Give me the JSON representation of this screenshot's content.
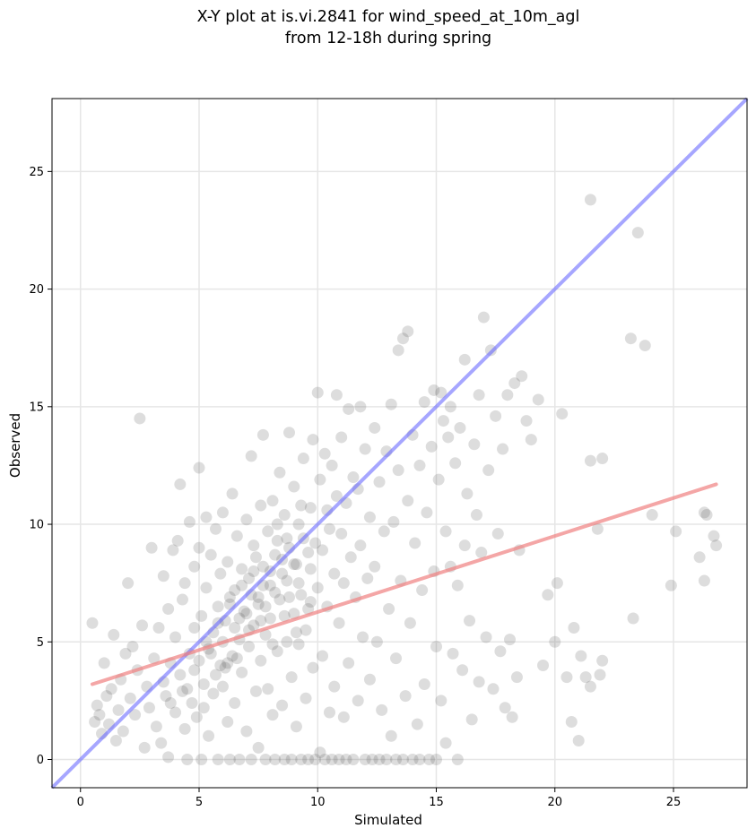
{
  "chart_data": {
    "type": "scatter",
    "title_line1": "X-Y plot at is.vi.2841 for wind_speed_at_10m_agl",
    "title_line2": "from 12-18h during spring",
    "xlabel": "Simulated",
    "ylabel": "Observed",
    "xlim": [
      -1.2,
      28.1
    ],
    "ylim": [
      -1.2,
      28.1
    ],
    "xticks": [
      0,
      5,
      10,
      15,
      20,
      25
    ],
    "yticks": [
      0,
      5,
      10,
      15,
      20,
      25
    ],
    "grid": true,
    "point_color": "#555555",
    "reference_line": {
      "color": "#6b6bff",
      "from": [
        -1.2,
        -1.2
      ],
      "to": [
        28.1,
        28.1
      ]
    },
    "fit_line": {
      "color": "#f08080",
      "from": [
        0.5,
        3.2
      ],
      "to": [
        26.8,
        11.7
      ]
    },
    "points": [
      [
        0.5,
        5.8
      ],
      [
        0.6,
        1.6
      ],
      [
        0.7,
        2.3
      ],
      [
        0.8,
        1.9
      ],
      [
        0.9,
        1.1
      ],
      [
        1.0,
        4.1
      ],
      [
        1.1,
        2.7
      ],
      [
        1.2,
        1.5
      ],
      [
        1.3,
        3.0
      ],
      [
        1.4,
        5.3
      ],
      [
        1.5,
        0.8
      ],
      [
        1.6,
        2.1
      ],
      [
        1.7,
        3.4
      ],
      [
        1.8,
        1.2
      ],
      [
        1.9,
        4.5
      ],
      [
        2.0,
        7.5
      ],
      [
        2.1,
        2.6
      ],
      [
        2.2,
        4.8
      ],
      [
        2.3,
        1.9
      ],
      [
        2.4,
        3.8
      ],
      [
        2.5,
        14.5
      ],
      [
        2.6,
        5.7
      ],
      [
        2.7,
        0.5
      ],
      [
        2.8,
        3.1
      ],
      [
        2.9,
        2.2
      ],
      [
        3.0,
        9.0
      ],
      [
        3.1,
        4.3
      ],
      [
        3.2,
        1.4
      ],
      [
        3.3,
        5.6
      ],
      [
        3.4,
        0.7
      ],
      [
        3.5,
        7.8
      ],
      [
        3.5,
        3.3
      ],
      [
        3.6,
        2.7
      ],
      [
        3.7,
        6.4
      ],
      [
        3.7,
        0.1
      ],
      [
        3.8,
        4.1
      ],
      [
        3.9,
        8.9
      ],
      [
        4.0,
        5.2
      ],
      [
        4.0,
        2.0
      ],
      [
        4.1,
        9.3
      ],
      [
        4.2,
        11.7
      ],
      [
        4.2,
        3.6
      ],
      [
        4.3,
        6.8
      ],
      [
        4.4,
        1.3
      ],
      [
        4.4,
        7.5
      ],
      [
        4.5,
        0.0
      ],
      [
        4.6,
        4.5
      ],
      [
        4.6,
        10.1
      ],
      [
        4.7,
        2.4
      ],
      [
        4.8,
        8.2
      ],
      [
        4.8,
        5.6
      ],
      [
        4.9,
        1.8
      ],
      [
        5.0,
        12.4
      ],
      [
        5.0,
        9.0
      ],
      [
        5.1,
        0.0
      ],
      [
        5.1,
        6.1
      ],
      [
        5.2,
        3.2
      ],
      [
        5.3,
        7.3
      ],
      [
        5.3,
        10.3
      ],
      [
        5.4,
        4.7
      ],
      [
        5.4,
        1.0
      ],
      [
        5.5,
        8.7
      ],
      [
        5.6,
        5.4
      ],
      [
        5.6,
        2.8
      ],
      [
        5.7,
        9.8
      ],
      [
        5.8,
        6.5
      ],
      [
        5.8,
        0.0
      ],
      [
        5.9,
        4.0
      ],
      [
        5.9,
        7.9
      ],
      [
        6.0,
        10.5
      ],
      [
        6.0,
        3.1
      ],
      [
        6.1,
        5.9
      ],
      [
        6.2,
        8.4
      ],
      [
        6.2,
        1.6
      ],
      [
        6.3,
        6.9
      ],
      [
        6.3,
        0.0
      ],
      [
        6.4,
        11.3
      ],
      [
        6.4,
        4.4
      ],
      [
        6.5,
        7.2
      ],
      [
        6.5,
        2.4
      ],
      [
        6.6,
        9.5
      ],
      [
        6.7,
        5.1
      ],
      [
        6.7,
        0.0
      ],
      [
        6.8,
        8.1
      ],
      [
        6.8,
        3.7
      ],
      [
        6.9,
        6.3
      ],
      [
        7.0,
        10.2
      ],
      [
        7.0,
        1.2
      ],
      [
        7.1,
        7.7
      ],
      [
        7.1,
        4.8
      ],
      [
        7.2,
        12.9
      ],
      [
        7.2,
        0.0
      ],
      [
        7.3,
        9.1
      ],
      [
        7.3,
        5.7
      ],
      [
        7.4,
        2.9
      ],
      [
        7.4,
        8.6
      ],
      [
        7.5,
        6.6
      ],
      [
        7.5,
        0.5
      ],
      [
        7.6,
        10.8
      ],
      [
        7.6,
        4.2
      ],
      [
        7.7,
        7.4
      ],
      [
        7.7,
        13.8
      ],
      [
        7.8,
        0.0
      ],
      [
        7.8,
        5.3
      ],
      [
        7.9,
        9.7
      ],
      [
        7.9,
        3.0
      ],
      [
        8.0,
        8.0
      ],
      [
        8.0,
        6.0
      ],
      [
        8.1,
        11.0
      ],
      [
        8.1,
        1.9
      ],
      [
        8.2,
        7.1
      ],
      [
        8.2,
        0.0
      ],
      [
        8.3,
        9.3
      ],
      [
        8.3,
        4.6
      ],
      [
        8.4,
        12.2
      ],
      [
        8.4,
        6.8
      ],
      [
        8.5,
        8.5
      ],
      [
        8.5,
        2.3
      ],
      [
        8.6,
        10.4
      ],
      [
        8.6,
        0.0
      ],
      [
        8.7,
        7.6
      ],
      [
        8.7,
        5.0
      ],
      [
        8.8,
        13.9
      ],
      [
        8.8,
        9.0
      ],
      [
        8.9,
        3.5
      ],
      [
        8.9,
        0.0
      ],
      [
        9.0,
        6.2
      ],
      [
        9.0,
        11.6
      ],
      [
        9.1,
        8.3
      ],
      [
        9.1,
        1.4
      ],
      [
        9.2,
        10.0
      ],
      [
        9.2,
        4.9
      ],
      [
        9.3,
        7.0
      ],
      [
        9.3,
        0.0
      ],
      [
        9.4,
        12.8
      ],
      [
        9.4,
        9.4
      ],
      [
        9.5,
        5.5
      ],
      [
        9.5,
        2.6
      ],
      [
        9.6,
        8.8
      ],
      [
        9.6,
        0.0
      ],
      [
        9.7,
        10.7
      ],
      [
        9.7,
        6.7
      ],
      [
        9.8,
        13.6
      ],
      [
        9.8,
        3.9
      ],
      [
        9.9,
        9.2
      ],
      [
        9.9,
        0.0
      ],
      [
        10.0,
        15.6
      ],
      [
        10.0,
        7.3
      ],
      [
        10.1,
        11.9
      ],
      [
        10.1,
        0.3
      ],
      [
        10.2,
        4.4
      ],
      [
        10.2,
        8.9
      ],
      [
        10.3,
        13.0
      ],
      [
        10.3,
        0.0
      ],
      [
        10.4,
        10.6
      ],
      [
        10.4,
        6.5
      ],
      [
        10.5,
        2.0
      ],
      [
        10.5,
        9.8
      ],
      [
        10.6,
        12.5
      ],
      [
        10.6,
        0.0
      ],
      [
        10.7,
        7.9
      ],
      [
        10.7,
        3.1
      ],
      [
        10.8,
        11.2
      ],
      [
        10.8,
        15.5
      ],
      [
        10.9,
        5.8
      ],
      [
        10.9,
        0.0
      ],
      [
        11.0,
        9.6
      ],
      [
        11.0,
        13.7
      ],
      [
        11.1,
        1.8
      ],
      [
        11.1,
        7.5
      ],
      [
        11.2,
        10.9
      ],
      [
        11.2,
        0.0
      ],
      [
        11.3,
        4.1
      ],
      [
        11.3,
        14.9
      ],
      [
        11.4,
        8.6
      ],
      [
        11.5,
        12.0
      ],
      [
        11.5,
        0.0
      ],
      [
        11.6,
        6.9
      ],
      [
        11.7,
        2.5
      ],
      [
        11.7,
        11.5
      ],
      [
        11.8,
        9.1
      ],
      [
        11.8,
        15.0
      ],
      [
        11.9,
        5.2
      ],
      [
        12.0,
        0.0
      ],
      [
        12.0,
        13.2
      ],
      [
        12.1,
        7.7
      ],
      [
        12.2,
        3.4
      ],
      [
        12.2,
        10.3
      ],
      [
        12.3,
        0.0
      ],
      [
        12.4,
        14.1
      ],
      [
        12.4,
        8.2
      ],
      [
        12.5,
        5.0
      ],
      [
        12.6,
        11.8
      ],
      [
        12.6,
        0.0
      ],
      [
        12.7,
        2.1
      ],
      [
        12.8,
        9.7
      ],
      [
        12.9,
        13.1
      ],
      [
        12.9,
        0.0
      ],
      [
        13.0,
        6.4
      ],
      [
        13.1,
        15.1
      ],
      [
        13.1,
        1.0
      ],
      [
        13.2,
        10.1
      ],
      [
        13.3,
        4.3
      ],
      [
        13.3,
        0.0
      ],
      [
        13.4,
        12.3
      ],
      [
        13.4,
        17.4
      ],
      [
        13.5,
        7.6
      ],
      [
        13.6,
        17.9
      ],
      [
        13.6,
        0.0
      ],
      [
        13.7,
        2.7
      ],
      [
        13.8,
        11.0
      ],
      [
        13.8,
        18.2
      ],
      [
        13.9,
        5.8
      ],
      [
        14.0,
        13.8
      ],
      [
        14.0,
        0.0
      ],
      [
        14.1,
        9.2
      ],
      [
        14.2,
        1.5
      ],
      [
        14.3,
        12.5
      ],
      [
        14.3,
        0.0
      ],
      [
        14.4,
        7.2
      ],
      [
        14.5,
        15.2
      ],
      [
        14.5,
        3.2
      ],
      [
        14.6,
        10.5
      ],
      [
        14.7,
        0.0
      ],
      [
        14.8,
        13.3
      ],
      [
        14.9,
        15.7
      ],
      [
        14.9,
        8.0
      ],
      [
        15.0,
        4.8
      ],
      [
        15.0,
        0.0
      ],
      [
        15.1,
        11.9
      ],
      [
        15.2,
        15.6
      ],
      [
        15.2,
        2.5
      ],
      [
        15.3,
        14.4
      ],
      [
        15.4,
        9.7
      ],
      [
        15.4,
        0.7
      ],
      [
        15.5,
        13.7
      ],
      [
        15.6,
        15.0
      ],
      [
        15.6,
        8.2
      ],
      [
        15.7,
        4.5
      ],
      [
        15.8,
        12.6
      ],
      [
        15.9,
        7.4
      ],
      [
        15.9,
        0.0
      ],
      [
        16.0,
        14.1
      ],
      [
        16.1,
        3.8
      ],
      [
        16.2,
        17.0
      ],
      [
        16.2,
        9.1
      ],
      [
        16.3,
        11.3
      ],
      [
        16.4,
        5.9
      ],
      [
        16.5,
        1.7
      ],
      [
        16.6,
        13.4
      ],
      [
        16.7,
        10.4
      ],
      [
        16.8,
        15.5
      ],
      [
        16.8,
        3.3
      ],
      [
        16.9,
        8.8
      ],
      [
        17.0,
        18.8
      ],
      [
        17.1,
        5.2
      ],
      [
        17.2,
        12.3
      ],
      [
        17.3,
        17.4
      ],
      [
        17.4,
        3.0
      ],
      [
        17.5,
        14.6
      ],
      [
        17.6,
        9.6
      ],
      [
        17.7,
        4.6
      ],
      [
        17.8,
        13.2
      ],
      [
        17.9,
        2.2
      ],
      [
        18.0,
        15.5
      ],
      [
        18.1,
        5.1
      ],
      [
        18.2,
        1.8
      ],
      [
        18.3,
        16.0
      ],
      [
        18.4,
        3.5
      ],
      [
        18.5,
        8.9
      ],
      [
        18.6,
        16.3
      ],
      [
        18.8,
        14.4
      ],
      [
        19.0,
        13.6
      ],
      [
        19.3,
        15.3
      ],
      [
        19.5,
        4.0
      ],
      [
        19.7,
        7.0
      ],
      [
        20.0,
        5.0
      ],
      [
        20.1,
        7.5
      ],
      [
        20.3,
        14.7
      ],
      [
        20.5,
        3.5
      ],
      [
        20.7,
        1.6
      ],
      [
        20.8,
        5.6
      ],
      [
        21.0,
        0.8
      ],
      [
        21.1,
        4.4
      ],
      [
        21.3,
        3.5
      ],
      [
        21.5,
        3.1
      ],
      [
        21.5,
        12.7
      ],
      [
        21.5,
        23.8
      ],
      [
        21.8,
        9.8
      ],
      [
        21.9,
        3.6
      ],
      [
        22.0,
        4.2
      ],
      [
        22.0,
        12.8
      ],
      [
        23.2,
        17.9
      ],
      [
        23.3,
        6.0
      ],
      [
        23.5,
        22.4
      ],
      [
        23.8,
        17.6
      ],
      [
        24.1,
        10.4
      ],
      [
        24.9,
        7.4
      ],
      [
        25.1,
        9.7
      ],
      [
        26.1,
        8.6
      ],
      [
        26.3,
        7.6
      ],
      [
        26.3,
        10.5
      ],
      [
        26.4,
        10.4
      ],
      [
        26.7,
        9.5
      ],
      [
        26.8,
        9.1
      ],
      [
        4.5,
        3.0
      ],
      [
        5.0,
        4.2
      ],
      [
        5.5,
        4.5
      ],
      [
        6.0,
        5.0
      ],
      [
        6.5,
        5.6
      ],
      [
        7.0,
        6.2
      ],
      [
        7.5,
        6.9
      ],
      [
        8.0,
        7.4
      ],
      [
        8.5,
        7.9
      ],
      [
        9.0,
        8.3
      ],
      [
        5.2,
        2.2
      ],
      [
        5.7,
        3.6
      ],
      [
        6.2,
        4.1
      ],
      [
        6.7,
        6.0
      ],
      [
        7.2,
        7.0
      ],
      [
        7.7,
        8.2
      ],
      [
        8.2,
        8.7
      ],
      [
        8.7,
        9.4
      ],
      [
        9.2,
        7.5
      ],
      [
        9.7,
        8.1
      ],
      [
        4.8,
        3.8
      ],
      [
        5.3,
        5.0
      ],
      [
        5.8,
        5.8
      ],
      [
        6.3,
        6.6
      ],
      [
        6.8,
        7.4
      ],
      [
        7.3,
        8.0
      ],
      [
        7.8,
        6.5
      ],
      [
        8.3,
        10.0
      ],
      [
        8.8,
        6.9
      ],
      [
        9.3,
        10.8
      ],
      [
        3.8,
        2.4
      ],
      [
        4.3,
        2.9
      ],
      [
        6.1,
        3.9
      ],
      [
        6.6,
        4.3
      ],
      [
        7.1,
        5.5
      ],
      [
        7.6,
        5.9
      ],
      [
        8.1,
        4.9
      ],
      [
        8.6,
        6.1
      ],
      [
        9.1,
        5.4
      ],
      [
        9.6,
        6.4
      ]
    ]
  }
}
